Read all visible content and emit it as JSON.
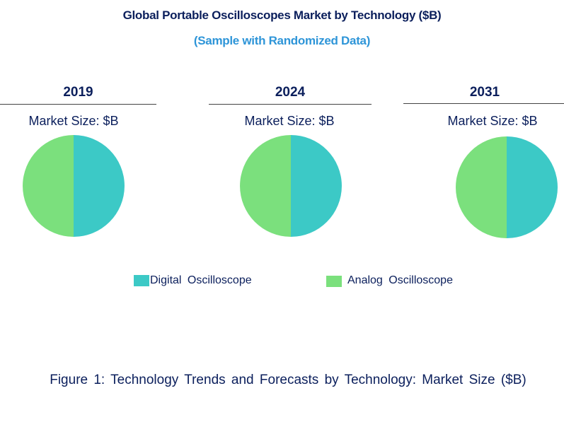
{
  "chart_data": {
    "type": "pie",
    "title": "Global Portable Oscilloscopes Market by Technology ($B)",
    "subtitle": "(Sample with Randomized Data)",
    "legend_position": "bottom",
    "series_names": [
      "Digital Oscilloscope",
      "Analog Oscilloscope"
    ],
    "colors": [
      "#3cc9c6",
      "#7be07d"
    ],
    "pies": [
      {
        "year": "2019",
        "label": "Market Size: $B",
        "values": [
          50,
          50
        ]
      },
      {
        "year": "2024",
        "label": "Market Size: $B",
        "values": [
          50,
          50
        ]
      },
      {
        "year": "2031",
        "label": "Market Size: $B",
        "values": [
          50,
          50
        ]
      }
    ]
  },
  "caption": "Figure 1: Technology Trends and Forecasts by Technology: Market Size ($B)"
}
